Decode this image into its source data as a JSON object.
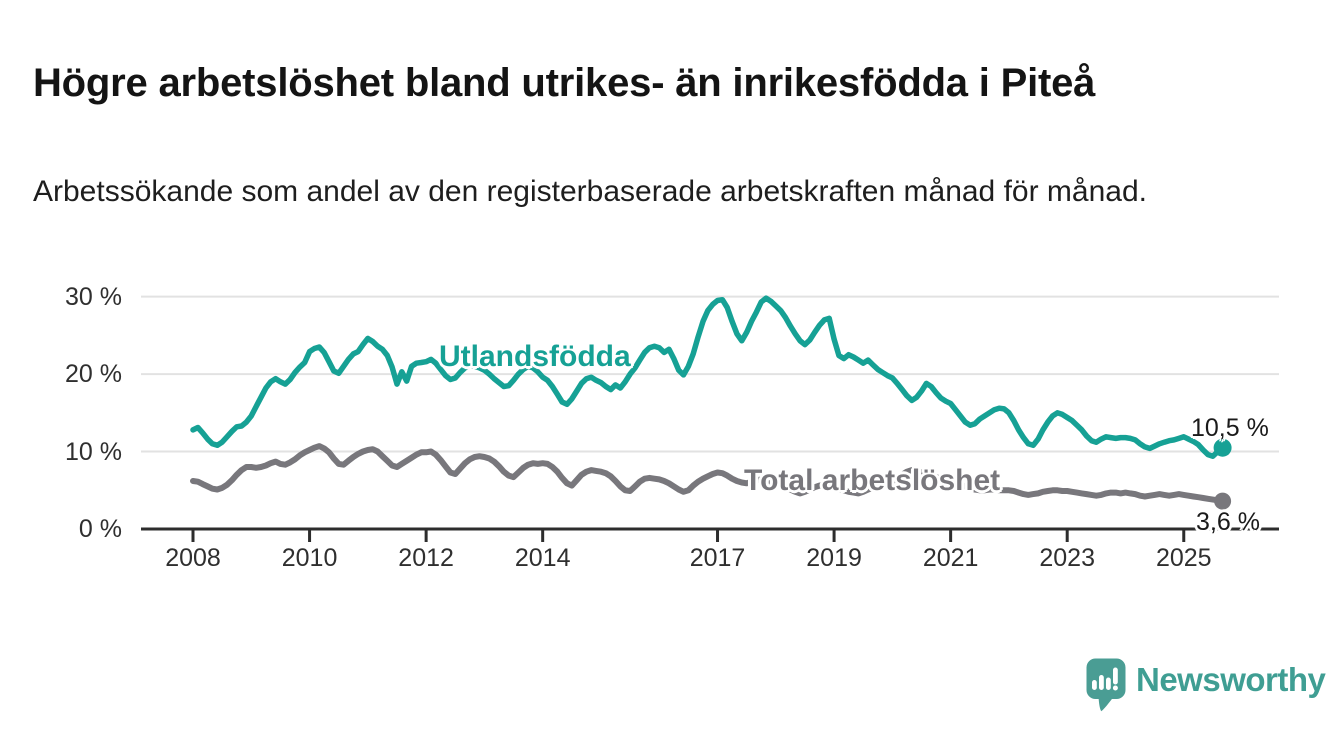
{
  "title": "Högre arbetslöshet bland utrikes- än inrikesfödda i Piteå",
  "subtitle": "Arbetssökande som andel av den registerbaserade arbetskraften månad för månad.",
  "branding": {
    "name": "Newsworthy",
    "logo_icon": "speech-bubble-bar-chart-icon",
    "color": "#3f9e93",
    "bubble_color": "#4a9d94"
  },
  "chart_data": {
    "type": "line",
    "title": "Högre arbetslöshet bland utrikes- än inrikesfödda i Piteå",
    "x_start_year": 2008,
    "points_per_year": 12,
    "x_tick_years": [
      2008,
      2010,
      2012,
      2014,
      2017,
      2019,
      2021,
      2023,
      2025
    ],
    "x_tick_labels": [
      "2008",
      "2010",
      "2012",
      "2014",
      "2017",
      "2019",
      "2021",
      "2023",
      "2025"
    ],
    "y_ticks": [
      0,
      10,
      20,
      30
    ],
    "y_tick_labels": [
      "0 %",
      "10 %",
      "20 %",
      "30 %"
    ],
    "ylim": [
      0,
      32
    ],
    "grid": "horizontal",
    "legend_position": "inline-labels",
    "colors": {
      "grid": "#e2e2e2",
      "axis": "#2d2d2d",
      "tick_text": "#2f2f2f"
    },
    "series": [
      {
        "name": "Utlandsfödda",
        "color": "#16a195",
        "end_label": "10,5 %",
        "end_value": 10.5,
        "values": [
          12.8,
          13.1,
          12.4,
          11.6,
          11.0,
          10.8,
          11.2,
          11.9,
          12.6,
          13.2,
          13.3,
          13.8,
          14.6,
          15.8,
          17.0,
          18.2,
          19.0,
          19.4,
          19.0,
          18.7,
          19.3,
          20.2,
          20.9,
          21.5,
          22.9,
          23.3,
          23.5,
          22.8,
          21.6,
          20.4,
          20.1,
          21.0,
          21.9,
          22.6,
          22.9,
          23.8,
          24.6,
          24.2,
          23.6,
          23.2,
          22.4,
          20.9,
          18.7,
          20.3,
          19.1,
          21.0,
          21.4,
          21.5,
          21.6,
          21.9,
          21.4,
          20.6,
          19.8,
          19.3,
          19.5,
          20.2,
          20.8,
          21.2,
          21.0,
          20.8,
          20.5,
          20.0,
          19.4,
          18.9,
          18.4,
          18.5,
          19.2,
          20.0,
          20.6,
          21.0,
          20.8,
          20.3,
          19.6,
          19.2,
          18.4,
          17.4,
          16.4,
          16.1,
          16.8,
          17.8,
          18.8,
          19.4,
          19.6,
          19.2,
          18.9,
          18.4,
          18.0,
          18.6,
          18.2,
          19.0,
          20.0,
          20.8,
          21.8,
          22.8,
          23.4,
          23.6,
          23.4,
          22.8,
          23.2,
          22.0,
          20.5,
          19.9,
          21.0,
          22.6,
          24.8,
          26.8,
          28.2,
          29.0,
          29.5,
          29.6,
          28.6,
          26.8,
          25.2,
          24.3,
          25.4,
          26.8,
          28.0,
          29.3,
          29.8,
          29.4,
          28.8,
          28.2,
          27.3,
          26.2,
          25.2,
          24.3,
          23.8,
          24.4,
          25.4,
          26.3,
          27.0,
          27.2,
          24.5,
          22.4,
          22.0,
          22.5,
          22.2,
          21.8,
          21.4,
          21.8,
          21.2,
          20.6,
          20.2,
          19.8,
          19.5,
          18.8,
          18.0,
          17.2,
          16.6,
          17.0,
          17.8,
          18.8,
          18.4,
          17.6,
          16.9,
          16.5,
          16.2,
          15.4,
          14.6,
          13.8,
          13.4,
          13.6,
          14.2,
          14.6,
          15.0,
          15.4,
          15.6,
          15.5,
          15.0,
          14.0,
          12.8,
          11.8,
          11.0,
          10.8,
          11.6,
          12.8,
          13.8,
          14.6,
          15.0,
          14.8,
          14.4,
          14.0,
          13.4,
          12.8,
          12.0,
          11.4,
          11.2,
          11.6,
          11.9,
          11.8,
          11.7,
          11.8,
          11.8,
          11.7,
          11.5,
          11.0,
          10.6,
          10.4,
          10.7,
          11.0,
          11.2,
          11.4,
          11.5,
          11.7,
          11.9,
          11.6,
          11.3,
          10.9,
          10.2,
          9.6,
          9.4,
          10.0,
          10.5
        ]
      },
      {
        "name": "Total arbetslöshet",
        "color": "#78777c",
        "end_label": "3,6 %",
        "end_value": 3.6,
        "values": [
          6.2,
          6.1,
          5.8,
          5.5,
          5.2,
          5.1,
          5.3,
          5.7,
          6.3,
          7.0,
          7.6,
          8.0,
          8.0,
          7.9,
          8.0,
          8.2,
          8.5,
          8.7,
          8.4,
          8.3,
          8.6,
          9.0,
          9.5,
          9.9,
          10.2,
          10.5,
          10.7,
          10.4,
          9.9,
          9.1,
          8.4,
          8.3,
          8.8,
          9.3,
          9.7,
          10.0,
          10.2,
          10.3,
          10.0,
          9.4,
          8.8,
          8.2,
          8.0,
          8.4,
          8.8,
          9.2,
          9.6,
          9.9,
          9.9,
          10.0,
          9.6,
          8.9,
          8.1,
          7.3,
          7.1,
          7.8,
          8.5,
          9.0,
          9.3,
          9.4,
          9.3,
          9.1,
          8.7,
          8.1,
          7.4,
          6.9,
          6.7,
          7.3,
          7.9,
          8.3,
          8.5,
          8.4,
          8.5,
          8.4,
          8.0,
          7.4,
          6.6,
          5.9,
          5.6,
          6.3,
          7.0,
          7.4,
          7.6,
          7.5,
          7.4,
          7.2,
          6.8,
          6.2,
          5.5,
          5.0,
          4.9,
          5.5,
          6.1,
          6.5,
          6.6,
          6.5,
          6.4,
          6.2,
          5.9,
          5.5,
          5.1,
          4.8,
          5.0,
          5.6,
          6.1,
          6.5,
          6.8,
          7.1,
          7.3,
          7.2,
          6.9,
          6.5,
          6.2,
          6.0,
          5.9,
          6.1,
          6.3,
          6.4,
          6.3,
          6.1,
          6.0,
          5.7,
          5.4,
          5.1,
          4.8,
          4.6,
          4.8,
          5.1,
          5.4,
          5.6,
          5.7,
          5.6,
          5.4,
          5.2,
          5.0,
          4.8,
          4.7,
          4.6,
          4.8,
          5.1,
          5.3,
          5.5,
          5.7,
          5.9,
          6.2,
          6.5,
          7.0,
          7.4,
          7.6,
          7.5,
          7.3,
          7.1,
          6.9,
          6.7,
          6.5,
          6.3,
          6.1,
          5.9,
          5.7,
          5.5,
          5.3,
          5.1,
          5.0,
          5.0,
          5.1,
          5.1,
          5.0,
          5.0,
          5.0,
          4.9,
          4.7,
          4.5,
          4.4,
          4.5,
          4.6,
          4.8,
          4.9,
          5.0,
          5.0,
          4.9,
          4.9,
          4.8,
          4.7,
          4.6,
          4.5,
          4.4,
          4.3,
          4.4,
          4.6,
          4.7,
          4.7,
          4.6,
          4.7,
          4.6,
          4.5,
          4.3,
          4.2,
          4.3,
          4.4,
          4.5,
          4.4,
          4.3,
          4.4,
          4.5,
          4.4,
          4.3,
          4.2,
          4.1,
          4.0,
          3.9,
          3.8,
          3.7,
          3.6
        ]
      }
    ]
  }
}
